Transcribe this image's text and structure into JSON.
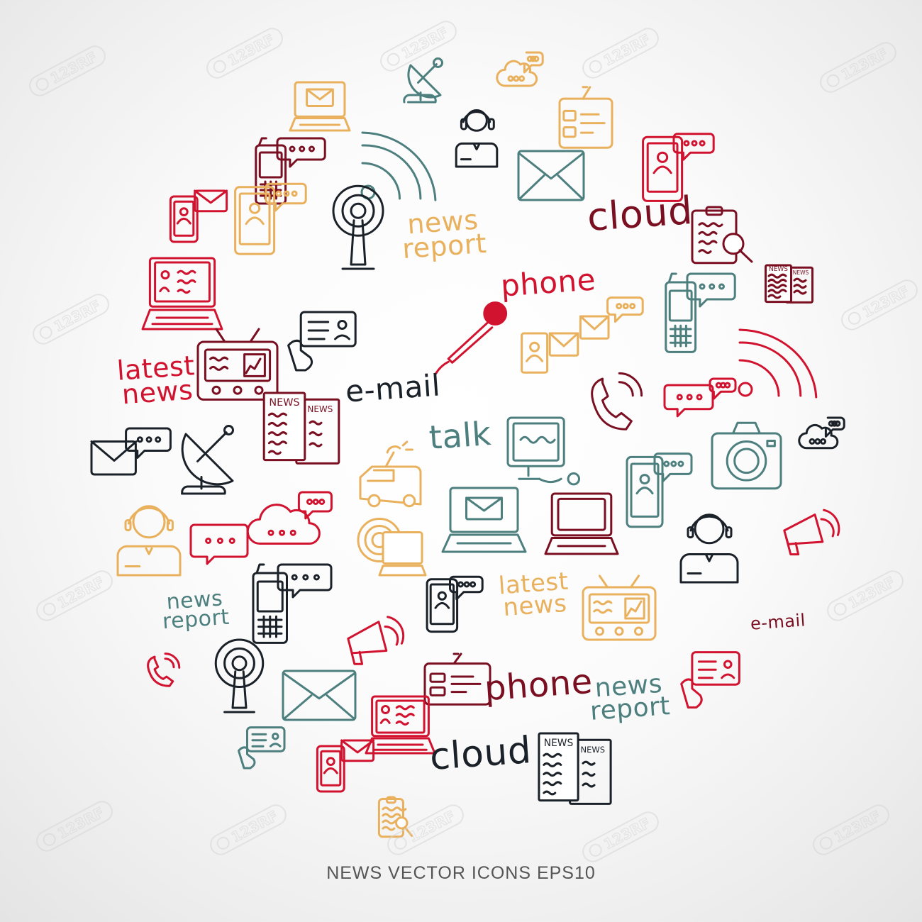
{
  "caption": "NEWS VECTOR ICONS EPS10",
  "watermark_text": "123RF",
  "colors": {
    "black": "#1b2128",
    "red": "#d1132f",
    "darkred": "#7b0f22",
    "teal": "#4c7f7e",
    "orange": "#e9b15d"
  },
  "words": [
    {
      "id": "news-report-1",
      "lines": [
        "news",
        "report"
      ],
      "color": "orange"
    },
    {
      "id": "cloud-1",
      "lines": [
        "cloud"
      ],
      "color": "darkred"
    },
    {
      "id": "phone-1",
      "lines": [
        "phone"
      ],
      "color": "red"
    },
    {
      "id": "latest-news-1",
      "lines": [
        "latest",
        "news"
      ],
      "color": "red"
    },
    {
      "id": "e-mail-1",
      "lines": [
        "e-mail"
      ],
      "color": "black"
    },
    {
      "id": "talk-1",
      "lines": [
        "talk"
      ],
      "color": "teal"
    },
    {
      "id": "news-report-2",
      "lines": [
        "news",
        "report"
      ],
      "color": "teal"
    },
    {
      "id": "latest-news-2",
      "lines": [
        "latest",
        "news"
      ],
      "color": "orange"
    },
    {
      "id": "e-mail-2",
      "lines": [
        "e-mail"
      ],
      "color": "darkred"
    },
    {
      "id": "phone-2",
      "lines": [
        "phone"
      ],
      "color": "darkred"
    },
    {
      "id": "news-report-3",
      "lines": [
        "news",
        "report"
      ],
      "color": "teal"
    },
    {
      "id": "cloud-2",
      "lines": [
        "cloud"
      ],
      "color": "black"
    }
  ],
  "icons": [
    {
      "id": "satellite-dish-icon",
      "color": "teal"
    },
    {
      "id": "laptop-mail-icon",
      "color": "orange"
    },
    {
      "id": "cloud-chat-icon",
      "color": "orange"
    },
    {
      "id": "operator-icon",
      "color": "black"
    },
    {
      "id": "radio-icon",
      "color": "orange"
    },
    {
      "id": "mobile-chat-icon",
      "color": "darkred"
    },
    {
      "id": "rss-icon",
      "color": "teal"
    },
    {
      "id": "envelope-icon",
      "color": "teal"
    },
    {
      "id": "tablet-chat-icon",
      "color": "red"
    },
    {
      "id": "phone-mail-icon",
      "color": "red"
    },
    {
      "id": "tablet-chat-icon",
      "color": "orange"
    },
    {
      "id": "antenna-icon",
      "color": "black"
    },
    {
      "id": "clipboard-search-icon",
      "color": "darkred"
    },
    {
      "id": "laptop-icon",
      "color": "red"
    },
    {
      "id": "newspaper-icon",
      "color": "darkred"
    },
    {
      "id": "mobile-chat-icon",
      "color": "teal"
    },
    {
      "id": "id-card-hand-icon",
      "color": "black"
    },
    {
      "id": "microphone-icon",
      "color": "red"
    },
    {
      "id": "mails-chat-icon",
      "color": "orange"
    },
    {
      "id": "tv-icon",
      "color": "darkred"
    },
    {
      "id": "rss-icon",
      "color": "red"
    },
    {
      "id": "phone-ring-icon",
      "color": "darkred"
    },
    {
      "id": "chat-bubbles-icon",
      "color": "red"
    },
    {
      "id": "newspaper-icon",
      "color": "darkred"
    },
    {
      "id": "satellite-dish-icon",
      "color": "black"
    },
    {
      "id": "mail-chat-icon",
      "color": "black"
    },
    {
      "id": "monitor-icon",
      "color": "teal"
    },
    {
      "id": "camera-icon",
      "color": "teal"
    },
    {
      "id": "cloud-chat-icon",
      "color": "black"
    },
    {
      "id": "van-icon",
      "color": "orange"
    },
    {
      "id": "tablet-chat-icon",
      "color": "teal"
    },
    {
      "id": "operator-icon",
      "color": "orange"
    },
    {
      "id": "chat-bubble-icon",
      "color": "red"
    },
    {
      "id": "cloud-chat-icon",
      "color": "red"
    },
    {
      "id": "laptop-mail-icon",
      "color": "teal"
    },
    {
      "id": "laptop-news-icon",
      "color": "darkred"
    },
    {
      "id": "megaphone-icon",
      "color": "red"
    },
    {
      "id": "laptop-radar-icon",
      "color": "orange"
    },
    {
      "id": "operator-icon",
      "color": "black"
    },
    {
      "id": "mobile-chat-icon",
      "color": "black"
    },
    {
      "id": "tablet-chat-icon",
      "color": "black"
    },
    {
      "id": "tv-icon",
      "color": "orange"
    },
    {
      "id": "megaphone-icon",
      "color": "red"
    },
    {
      "id": "phone-ring-icon",
      "color": "red"
    },
    {
      "id": "antenna-icon",
      "color": "black"
    },
    {
      "id": "envelope-icon",
      "color": "teal"
    },
    {
      "id": "radio-icon",
      "color": "darkred"
    },
    {
      "id": "laptop-icon",
      "color": "red"
    },
    {
      "id": "id-card-hand-icon",
      "color": "red"
    },
    {
      "id": "id-card-hand-icon",
      "color": "teal"
    },
    {
      "id": "phone-mail-icon",
      "color": "red"
    },
    {
      "id": "newspaper-icon",
      "color": "black"
    },
    {
      "id": "clipboard-search-icon",
      "color": "orange"
    }
  ]
}
